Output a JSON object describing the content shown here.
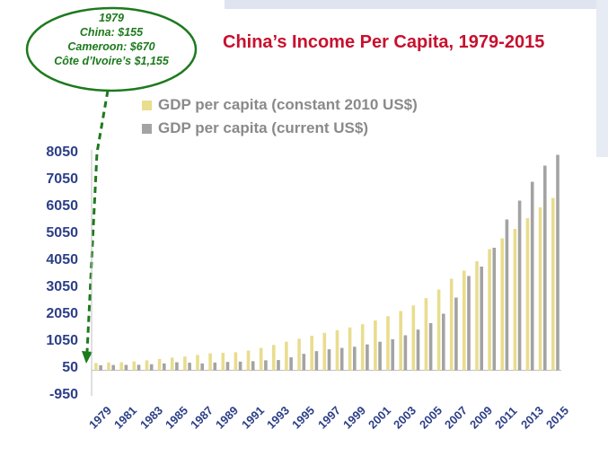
{
  "chart_data": {
    "type": "bar",
    "title": "China’s Income Per Capita, 1979-2015",
    "categories": [
      "1979",
      "1980",
      "1981",
      "1982",
      "1983",
      "1984",
      "1985",
      "1986",
      "1987",
      "1988",
      "1989",
      "1990",
      "1991",
      "1992",
      "1993",
      "1994",
      "1995",
      "1996",
      "1997",
      "1998",
      "1999",
      "2000",
      "2001",
      "2002",
      "2003",
      "2004",
      "2005",
      "2006",
      "2007",
      "2008",
      "2009",
      "2010",
      "2011",
      "2012",
      "2013",
      "2014",
      "2015"
    ],
    "x_tick_labels": [
      "1979",
      "1981",
      "1983",
      "1985",
      "1987",
      "1989",
      "1991",
      "1993",
      "1995",
      "1997",
      "1999",
      "2001",
      "2003",
      "2005",
      "2007",
      "2009",
      "2011",
      "2013",
      "2015"
    ],
    "series": [
      {
        "name": "GDP per capita (constant 2010 US$)",
        "color": "#e9dd8e",
        "values": [
          270,
          290,
          300,
          330,
          370,
          420,
          470,
          510,
          570,
          630,
          650,
          670,
          730,
          830,
          940,
          1060,
          1170,
          1280,
          1390,
          1490,
          1590,
          1710,
          1850,
          2010,
          2200,
          2410,
          2680,
          3000,
          3400,
          3700,
          4050,
          4500,
          4900,
          5250,
          5650,
          6050,
          6400
        ]
      },
      {
        "name": "GDP per capita (current US$)",
        "color": "#a3a3a3",
        "values": [
          185,
          195,
          200,
          205,
          225,
          255,
          295,
          280,
          255,
          285,
          310,
          320,
          335,
          370,
          380,
          480,
          610,
          710,
          780,
          830,
          875,
          960,
          1060,
          1150,
          1300,
          1510,
          1750,
          2100,
          2700,
          3500,
          3850,
          4550,
          5600,
          6300,
          7000,
          7600,
          8000
        ]
      }
    ],
    "y_ticks": [
      -950,
      50,
      1050,
      2050,
      3050,
      4050,
      5050,
      6050,
      7050,
      8050
    ],
    "ylim": [
      -950,
      8050
    ],
    "xlabel": "",
    "ylabel": "",
    "grid": false,
    "legend_position": "top"
  },
  "callout": {
    "lines": [
      "1979",
      "China: $155",
      "Cameroon: $670",
      "Côte d’Ivoire’s $1,155"
    ],
    "color": "#1d7a1d"
  },
  "colors": {
    "title": "#c8102e",
    "axis_text": "#2c3f87",
    "legend_text": "#8a8a8a"
  }
}
